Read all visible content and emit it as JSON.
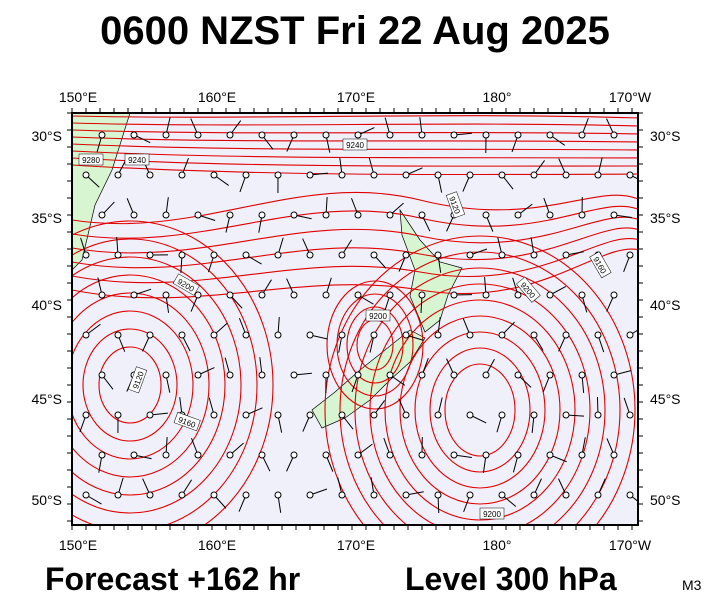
{
  "header": {
    "title": "0600 NZST Fri 22 Aug 2025"
  },
  "axes": {
    "top_labels": [
      "150°E",
      "160°E",
      "170°E",
      "180°",
      "170°W"
    ],
    "bottom_labels": [
      "150°E",
      "160°E",
      "170°E",
      "180°",
      "170°W"
    ],
    "left_labels": [
      "30°S",
      "35°S",
      "40°S",
      "45°S",
      "50°S"
    ],
    "right_labels": [
      "30°S",
      "35°S",
      "40°S",
      "45°S",
      "50°S"
    ]
  },
  "contour_labels": [
    "9280",
    "9240",
    "9240",
    "9120",
    "9200",
    "9200",
    "9160",
    "9200",
    "9120",
    "9160",
    "9200"
  ],
  "footer": {
    "forecast": "Forecast +162 hr",
    "level": "Level 300 hPa",
    "code": "M3"
  }
}
